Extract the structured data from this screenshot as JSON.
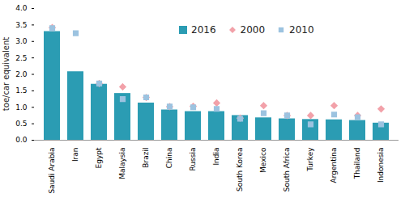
{
  "chart_data": {
    "type": "bar",
    "y_label": "toe/car equivalent",
    "categories": [
      "Saudi Arabia",
      "Iran",
      "Egypt",
      "Malaysia",
      "Brazil",
      "China",
      "Russia",
      "India",
      "South Korea",
      "Mexico",
      "South Africa",
      "Turkey",
      "Argentina",
      "Thailand",
      "Indonesia"
    ],
    "series": [
      {
        "name": "2016",
        "type": "bar",
        "color": "#2b9cb3",
        "values": [
          3.3,
          2.08,
          1.7,
          1.42,
          1.13,
          0.92,
          0.87,
          0.87,
          0.75,
          0.68,
          0.65,
          0.63,
          0.62,
          0.6,
          0.52
        ]
      },
      {
        "name": "2000",
        "type": "scatter",
        "marker": "diamond",
        "color": "#f2a1a9",
        "values": [
          3.42,
          null,
          1.72,
          1.62,
          1.3,
          1.02,
          1.03,
          1.13,
          0.67,
          1.05,
          0.75,
          0.75,
          1.05,
          0.75,
          0.95
        ]
      },
      {
        "name": "2010",
        "type": "scatter",
        "marker": "square",
        "color": "#9cc3e0",
        "values": [
          3.4,
          3.25,
          1.72,
          1.25,
          1.3,
          1.02,
          1.0,
          0.95,
          0.65,
          0.82,
          0.75,
          0.48,
          0.78,
          0.7,
          0.48
        ]
      }
    ],
    "ylim": [
      0,
      4
    ],
    "yticks": [
      {
        "value": 0,
        "label": "0.0"
      },
      0.5,
      {
        "value": 1,
        "label": "1.0"
      },
      1.5,
      {
        "value": 2,
        "label": "2.0"
      },
      2.5,
      {
        "value": 3,
        "label": "3.0"
      },
      3.5,
      {
        "value": 4,
        "label": "4.0"
      }
    ],
    "grid": false,
    "legend": "top"
  }
}
